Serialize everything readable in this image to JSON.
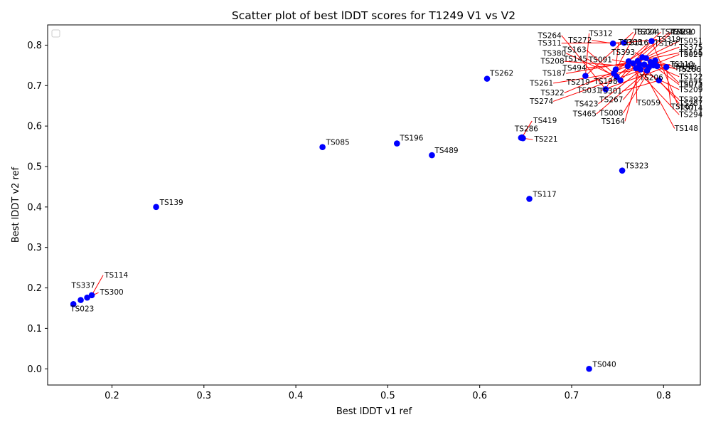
{
  "chart_data": {
    "type": "scatter",
    "title": "Scatter plot of best lDDT scores for T1249 V1 vs V2",
    "xlabel": "Best lDDT v1 ref",
    "ylabel": "Best lDDT v2 ref",
    "xlim": [
      0.13,
      0.84
    ],
    "ylim": [
      -0.04,
      0.85
    ],
    "xticks": [
      "0.2",
      "0.3",
      "0.4",
      "0.5",
      "0.6",
      "0.7",
      "0.8"
    ],
    "yticks": [
      "0.0",
      "0.1",
      "0.2",
      "0.3",
      "0.4",
      "0.5",
      "0.6",
      "0.7",
      "0.8"
    ],
    "grid": false,
    "legend": "upper-left, empty",
    "point_color": "#0000ff",
    "line_color": "#ff0000",
    "labeled_points": [
      {
        "label": "TS023",
        "x": 0.158,
        "y": 0.16
      },
      {
        "label": "TS337",
        "x": 0.166,
        "y": 0.17
      },
      {
        "label": "TS114",
        "x": 0.178,
        "y": 0.182
      },
      {
        "label": "TS300",
        "x": 0.173,
        "y": 0.176
      },
      {
        "label": "TS139",
        "x": 0.248,
        "y": 0.4
      },
      {
        "label": "TS085",
        "x": 0.429,
        "y": 0.548
      },
      {
        "label": "TS196",
        "x": 0.51,
        "y": 0.557
      },
      {
        "label": "TS489",
        "x": 0.548,
        "y": 0.528
      },
      {
        "label": "TS262",
        "x": 0.608,
        "y": 0.717
      },
      {
        "label": "TS286",
        "x": 0.645,
        "y": 0.571
      },
      {
        "label": "TS419",
        "x": 0.646,
        "y": 0.572
      },
      {
        "label": "TS221",
        "x": 0.647,
        "y": 0.57
      },
      {
        "label": "TS117",
        "x": 0.654,
        "y": 0.42
      },
      {
        "label": "TS323",
        "x": 0.755,
        "y": 0.49
      },
      {
        "label": "TS040",
        "x": 0.719,
        "y": 0.0
      }
    ],
    "cluster_points": [
      {
        "x": 0.715,
        "y": 0.724
      },
      {
        "x": 0.737,
        "y": 0.691
      },
      {
        "x": 0.745,
        "y": 0.804
      },
      {
        "x": 0.757,
        "y": 0.806
      },
      {
        "x": 0.748,
        "y": 0.74
      },
      {
        "x": 0.746,
        "y": 0.73
      },
      {
        "x": 0.749,
        "y": 0.722
      },
      {
        "x": 0.753,
        "y": 0.713
      },
      {
        "x": 0.761,
        "y": 0.748
      },
      {
        "x": 0.767,
        "y": 0.755
      },
      {
        "x": 0.772,
        "y": 0.761
      },
      {
        "x": 0.775,
        "y": 0.74
      },
      {
        "x": 0.779,
        "y": 0.752
      },
      {
        "x": 0.781,
        "y": 0.768
      },
      {
        "x": 0.784,
        "y": 0.745
      },
      {
        "x": 0.786,
        "y": 0.758
      },
      {
        "x": 0.789,
        "y": 0.75
      },
      {
        "x": 0.791,
        "y": 0.762
      },
      {
        "x": 0.777,
        "y": 0.77
      },
      {
        "x": 0.77,
        "y": 0.743
      },
      {
        "x": 0.782,
        "y": 0.737
      },
      {
        "x": 0.795,
        "y": 0.713
      },
      {
        "x": 0.803,
        "y": 0.746
      },
      {
        "x": 0.787,
        "y": 0.81
      },
      {
        "x": 0.762,
        "y": 0.76
      },
      {
        "x": 0.774,
        "y": 0.752
      },
      {
        "x": 0.793,
        "y": 0.748
      }
    ],
    "cluster_labels": [
      {
        "label": "TS312",
        "tx": 0.719,
        "ty": 0.829
      },
      {
        "label": "TS264",
        "tx": 0.689,
        "ty": 0.824
      },
      {
        "label": "TS272",
        "tx": 0.722,
        "ty": 0.812
      },
      {
        "label": "TS311",
        "tx": 0.689,
        "ty": 0.805
      },
      {
        "label": "TS308",
        "tx": 0.751,
        "ty": 0.807
      },
      {
        "label": "TS163",
        "tx": 0.716,
        "ty": 0.788
      },
      {
        "label": "TS380",
        "tx": 0.694,
        "ty": 0.78
      },
      {
        "label": "TS145",
        "tx": 0.717,
        "ty": 0.766
      },
      {
        "label": "TS208",
        "tx": 0.692,
        "ty": 0.76
      },
      {
        "label": "TS494",
        "tx": 0.716,
        "ty": 0.744
      },
      {
        "label": "TS187",
        "tx": 0.694,
        "ty": 0.73
      },
      {
        "label": "TS261",
        "tx": 0.68,
        "ty": 0.706
      },
      {
        "label": "TS219",
        "tx": 0.72,
        "ty": 0.708
      },
      {
        "label": "TS322",
        "tx": 0.692,
        "ty": 0.682
      },
      {
        "label": "TS274",
        "tx": 0.68,
        "ty": 0.661
      },
      {
        "label": "TS423",
        "tx": 0.729,
        "ty": 0.655
      },
      {
        "label": "TS465",
        "tx": 0.727,
        "ty": 0.63
      },
      {
        "label": "TS008",
        "tx": 0.756,
        "ty": 0.632
      },
      {
        "label": "TS164",
        "tx": 0.758,
        "ty": 0.612
      },
      {
        "label": "TS059",
        "tx": 0.771,
        "ty": 0.657
      },
      {
        "label": "TS267",
        "tx": 0.756,
        "ty": 0.665
      },
      {
        "label": "TS301",
        "tx": 0.755,
        "ty": 0.686
      },
      {
        "label": "TS031",
        "tx": 0.732,
        "ty": 0.688
      },
      {
        "label": "TS198",
        "tx": 0.75,
        "ty": 0.71
      },
      {
        "label": "TS206",
        "tx": 0.774,
        "ty": 0.72
      },
      {
        "label": "TS091",
        "tx": 0.744,
        "ty": 0.764
      },
      {
        "label": "TS393",
        "tx": 0.769,
        "ty": 0.782
      },
      {
        "label": "TS324",
        "tx": 0.767,
        "ty": 0.832
      },
      {
        "label": "TS004",
        "tx": 0.77,
        "ty": 0.832
      },
      {
        "label": "TS116",
        "tx": 0.758,
        "ty": 0.806
      },
      {
        "label": "TS319",
        "tx": 0.793,
        "ty": 0.814
      },
      {
        "label": "TS167",
        "tx": 0.79,
        "ty": 0.804
      },
      {
        "label": "TS425",
        "tx": 0.797,
        "ty": 0.832
      },
      {
        "label": "TS461",
        "tx": 0.806,
        "ty": 0.832
      },
      {
        "label": "TS290",
        "tx": 0.809,
        "ty": 0.832
      },
      {
        "label": "TS051",
        "tx": 0.817,
        "ty": 0.81
      },
      {
        "label": "TS375",
        "tx": 0.817,
        "ty": 0.795
      },
      {
        "label": "TS165",
        "tx": 0.817,
        "ty": 0.781
      },
      {
        "label": "TS029",
        "tx": 0.817,
        "ty": 0.777
      },
      {
        "label": "TS110",
        "tx": 0.807,
        "ty": 0.752
      },
      {
        "label": "TS147",
        "tx": 0.809,
        "ty": 0.748
      },
      {
        "label": "TS241",
        "tx": 0.812,
        "ty": 0.744
      },
      {
        "label": "TS286b",
        "tx": 0.815,
        "ty": 0.74
      },
      {
        "label": "TS122",
        "tx": 0.817,
        "ty": 0.722
      },
      {
        "label": "TS075",
        "tx": 0.817,
        "ty": 0.706
      },
      {
        "label": "TS073",
        "tx": 0.817,
        "ty": 0.702
      },
      {
        "label": "TS209",
        "tx": 0.817,
        "ty": 0.69
      },
      {
        "label": "TS397",
        "tx": 0.817,
        "ty": 0.665
      },
      {
        "label": "TS287",
        "tx": 0.817,
        "ty": 0.656
      },
      {
        "label": "TS167b",
        "tx": 0.808,
        "ty": 0.648
      },
      {
        "label": "TS014",
        "tx": 0.817,
        "ty": 0.644
      },
      {
        "label": "TS294",
        "tx": 0.817,
        "ty": 0.628
      },
      {
        "label": "TS148",
        "tx": 0.812,
        "ty": 0.594
      }
    ],
    "cluster_label_text": {
      "TS286b": "TS286",
      "TS167b": "TS167"
    }
  }
}
